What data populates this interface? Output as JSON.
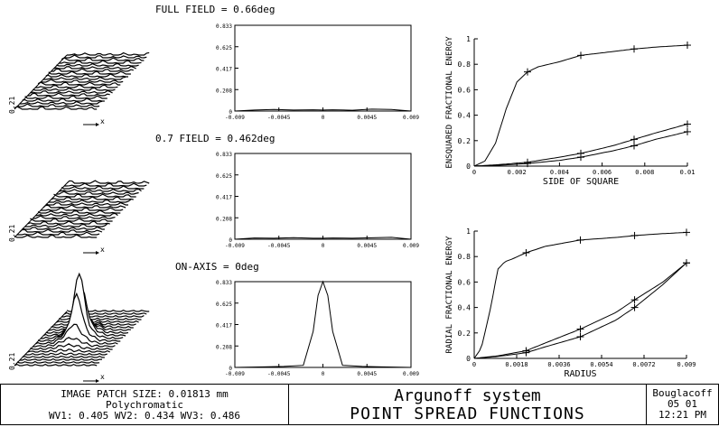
{
  "fields": [
    {
      "title": "FULL FIELD = 0.66deg",
      "z_label": "0.21",
      "x_label": "x"
    },
    {
      "title": "0.7 FIELD = 0.462deg",
      "z_label": "0.21",
      "x_label": "x"
    },
    {
      "title": "ON-AXIS = 0deg",
      "z_label": "0.21",
      "x_label": "x"
    }
  ],
  "psf_x_ticks": [
    "-0.009",
    "-0.0045",
    "0",
    "0.0045",
    "0.009"
  ],
  "psf_y_ticks": [
    "0",
    "0.208",
    "0.417",
    "0.625",
    "0.833"
  ],
  "chart_data": [
    {
      "type": "line",
      "id": "psf-full-field",
      "xlim": [
        -0.009,
        0.009
      ],
      "ylim": [
        0,
        0.833
      ],
      "series": [
        {
          "x": [
            -0.009,
            -0.007,
            -0.005,
            -0.003,
            -0.001,
            0,
            0.001,
            0.003,
            0.005,
            0.007,
            0.009
          ],
          "values": [
            0,
            0.01,
            0.015,
            0.01,
            0.012,
            0.01,
            0.012,
            0.008,
            0.018,
            0.015,
            0
          ]
        }
      ]
    },
    {
      "type": "line",
      "id": "psf-07-field",
      "xlim": [
        -0.009,
        0.009
      ],
      "ylim": [
        0,
        0.833
      ],
      "series": [
        {
          "x": [
            -0.009,
            -0.007,
            -0.005,
            -0.003,
            -0.001,
            0,
            0.001,
            0.003,
            0.005,
            0.007,
            0.009
          ],
          "values": [
            0,
            0.012,
            0.01,
            0.015,
            0.01,
            0.01,
            0.012,
            0.01,
            0.014,
            0.018,
            0
          ]
        }
      ]
    },
    {
      "type": "line",
      "id": "psf-on-axis",
      "xlim": [
        -0.009,
        0.009
      ],
      "ylim": [
        0,
        0.833
      ],
      "series": [
        {
          "x": [
            -0.009,
            -0.006,
            -0.004,
            -0.002,
            -0.001,
            -0.0005,
            0,
            0.0005,
            0.001,
            0.002,
            0.004,
            0.006,
            0.009
          ],
          "values": [
            0,
            0.005,
            0.01,
            0.02,
            0.35,
            0.7,
            0.833,
            0.7,
            0.35,
            0.02,
            0.01,
            0.005,
            0
          ]
        }
      ]
    },
    {
      "type": "line",
      "id": "ensquared-energy",
      "xlabel": "SIDE OF SQUARE",
      "ylabel": "ENSQUARED FRACTIONAL ENERGY",
      "xlim": [
        0,
        0.01
      ],
      "ylim": [
        0,
        1
      ],
      "x_ticks": [
        "0",
        "0.002",
        "0.004",
        "0.006",
        "0.008",
        "0.01"
      ],
      "y_ticks": [
        "0",
        "0.2",
        "0.4",
        "0.6",
        "0.8",
        "1"
      ],
      "series": [
        {
          "x": [
            0,
            0.0005,
            0.001,
            0.0015,
            0.002,
            0.0025,
            0.003,
            0.004,
            0.005,
            0.006,
            0.0075,
            0.0085,
            0.01
          ],
          "values": [
            0,
            0.04,
            0.18,
            0.45,
            0.66,
            0.74,
            0.78,
            0.82,
            0.87,
            0.89,
            0.92,
            0.935,
            0.95
          ]
        },
        {
          "x": [
            0,
            0.001,
            0.0025,
            0.004,
            0.005,
            0.0065,
            0.0075,
            0.0085,
            0.01
          ],
          "values": [
            0,
            0.01,
            0.03,
            0.07,
            0.1,
            0.16,
            0.21,
            0.26,
            0.33
          ]
        },
        {
          "x": [
            0,
            0.001,
            0.0025,
            0.004,
            0.005,
            0.0065,
            0.0075,
            0.0085,
            0.01
          ],
          "values": [
            0,
            0.005,
            0.02,
            0.045,
            0.07,
            0.12,
            0.16,
            0.21,
            0.27
          ]
        }
      ]
    },
    {
      "type": "line",
      "id": "radial-energy",
      "xlabel": "RADIUS",
      "ylabel": "RADIAL FRACTIONAL ENERGY",
      "xlim": [
        0,
        0.009
      ],
      "ylim": [
        0,
        1
      ],
      "x_ticks": [
        "0",
        "0.0018",
        "0.0036",
        "0.0054",
        "0.0072",
        "0.009"
      ],
      "y_ticks": [
        "0",
        "0.2",
        "0.4",
        "0.6",
        "0.8",
        "1"
      ],
      "series": [
        {
          "x": [
            0,
            0.0003,
            0.0007,
            0.001,
            0.0013,
            0.0016,
            0.0022,
            0.003,
            0.0045,
            0.006,
            0.0068,
            0.008,
            0.009
          ],
          "values": [
            0,
            0.08,
            0.4,
            0.7,
            0.76,
            0.78,
            0.83,
            0.88,
            0.93,
            0.95,
            0.965,
            0.98,
            0.99
          ]
        },
        {
          "x": [
            0,
            0.001,
            0.0022,
            0.003,
            0.0045,
            0.006,
            0.0068,
            0.008,
            0.009
          ],
          "values": [
            0,
            0.02,
            0.06,
            0.12,
            0.23,
            0.36,
            0.46,
            0.6,
            0.75
          ]
        },
        {
          "x": [
            0,
            0.001,
            0.0022,
            0.003,
            0.0045,
            0.006,
            0.0068,
            0.008,
            0.009
          ],
          "values": [
            0,
            0.015,
            0.045,
            0.09,
            0.17,
            0.3,
            0.4,
            0.58,
            0.75
          ]
        }
      ]
    }
  ],
  "footer": {
    "patch_size": "IMAGE PATCH SIZE: 0.01813 mm",
    "spectrum": "Polychromatic",
    "wavelengths": "WV1: 0.405 WV2: 0.434 WV3: 0.486",
    "system": "Argunoff system",
    "title": "POINT SPREAD FUNCTIONS",
    "author": "Bouglacoff",
    "date": "05  01",
    "time": "12:21 PM"
  }
}
